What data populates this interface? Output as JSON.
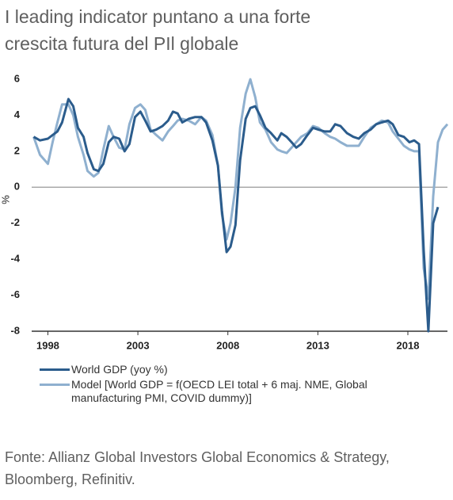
{
  "chart_data": {
    "type": "line",
    "title": "I leading indicator puntano a una forte crescita futura del PIl globale",
    "y_label": "%",
    "source": "Fonte: Allianz Global Investors Global Economics & Strategy, Bloomberg, Refinitiv.",
    "x": [
      1997.21,
      1997.56,
      1998,
      1998.26,
      1998.53,
      1998.79,
      1999.14,
      1999.41,
      1999.67,
      1999.98,
      2000.2,
      2000.55,
      2000.81,
      2001.08,
      2001.38,
      2001.65,
      2001.96,
      2002.26,
      2002.53,
      2002.84,
      2003.14,
      2003.41,
      2003.71,
      2004.02,
      2004.37,
      2004.68,
      2004.95,
      2005.21,
      2005.47,
      2005.82,
      2006.18,
      2006.53,
      2006.79,
      2007.14,
      2007.45,
      2007.67,
      2007.93,
      2008.15,
      2008.42,
      2008.68,
      2008.99,
      2009.25,
      2009.52,
      2009.78,
      2010.09,
      2010.4,
      2010.75,
      2010.97,
      2011.27,
      2011.54,
      2011.8,
      2012.07,
      2012.42,
      2012.73,
      2013.03,
      2013.38,
      2013.69,
      2013.96,
      2014.26,
      2014.62,
      2014.97,
      2015.27,
      2015.58,
      2015.93,
      2016.24,
      2016.55,
      2016.9,
      2017.16,
      2017.47,
      2017.78,
      2018.09,
      2018.35,
      2018.62,
      2018.88,
      2019.14,
      2019.41,
      2019.67,
      2019.93,
      2020.2
    ],
    "series": [
      {
        "name": "World GDP (yoy %)",
        "color": "#2b5c8c",
        "values": [
          2.8,
          2.6,
          2.7,
          2.9,
          3.1,
          3.6,
          4.9,
          4.5,
          3.3,
          2.8,
          1.9,
          1.0,
          0.9,
          1.3,
          2.5,
          2.8,
          2.7,
          2.0,
          2.4,
          3.9,
          4.2,
          3.7,
          3.1,
          3.2,
          3.4,
          3.7,
          4.2,
          4.1,
          3.6,
          3.8,
          3.9,
          3.9,
          3.6,
          2.6,
          1.2,
          -1.3,
          -3.6,
          -3.3,
          -2.1,
          1.5,
          3.8,
          4.4,
          4.5,
          4.0,
          3.3,
          3.0,
          2.6,
          3.0,
          2.8,
          2.5,
          2.2,
          2.4,
          2.9,
          3.3,
          3.2,
          3.1,
          3.1,
          3.5,
          3.4,
          3.0,
          2.8,
          2.7,
          3.0,
          3.2,
          3.5,
          3.6,
          3.7,
          3.5,
          2.9,
          2.8,
          2.5,
          2.6,
          2.4,
          -3.5,
          -8.0,
          -2.0,
          -1.1,
          null,
          null
        ]
      },
      {
        "name": "Model [World GDP = f(OECD LEI total + 6 maj. NME, Global manufacturing PMI, COVID dummy)]",
        "color": "#8fb0cf",
        "values": [
          2.8,
          1.8,
          1.3,
          2.5,
          3.6,
          4.6,
          4.6,
          4.0,
          2.8,
          1.8,
          0.9,
          0.6,
          0.8,
          2.1,
          3.4,
          2.8,
          2.2,
          2.1,
          3.5,
          4.4,
          4.6,
          4.3,
          3.2,
          2.9,
          2.6,
          3.1,
          3.4,
          3.7,
          3.8,
          3.7,
          3.5,
          3.9,
          3.7,
          2.9,
          1.2,
          -1.5,
          -2.9,
          -2.0,
          0.0,
          3.3,
          5.2,
          6.0,
          5.0,
          3.6,
          3.2,
          2.5,
          2.1,
          2.0,
          1.9,
          2.2,
          2.5,
          2.8,
          3.0,
          3.4,
          3.3,
          3.0,
          2.8,
          2.7,
          2.5,
          2.3,
          2.3,
          2.3,
          2.8,
          3.3,
          3.5,
          3.7,
          3.6,
          3.1,
          2.7,
          2.3,
          2.1,
          2.0,
          2.0,
          -4.5,
          -6.2,
          -0.5,
          2.5,
          3.2,
          3.5
        ]
      }
    ],
    "xlim": [
      1997.1,
      2020.2
    ],
    "xticks": [
      1998,
      2003,
      2008,
      2013,
      2018
    ],
    "ylim": [
      -8,
      6
    ],
    "yticks": [
      -8,
      -6,
      -4,
      -2,
      0,
      2,
      4,
      6
    ]
  }
}
